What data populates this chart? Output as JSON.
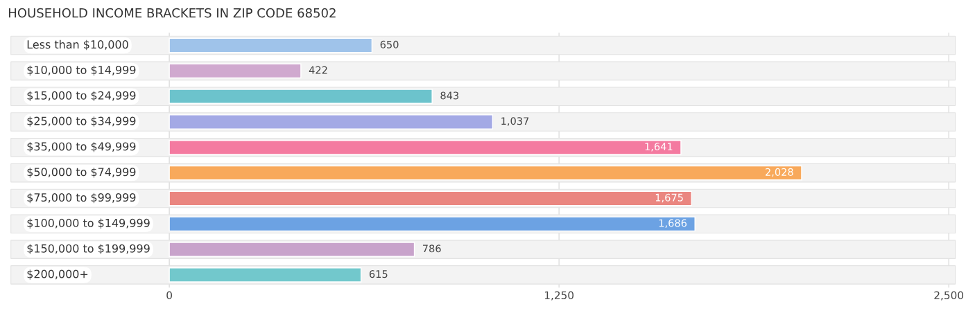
{
  "chart_data": {
    "type": "bar",
    "orientation": "horizontal",
    "title": "HOUSEHOLD INCOME BRACKETS IN ZIP CODE 68502",
    "categories": [
      "Less than $10,000",
      "$10,000 to $14,999",
      "$15,000 to $24,999",
      "$25,000 to $34,999",
      "$35,000 to $49,999",
      "$50,000 to $74,999",
      "$75,000 to $99,999",
      "$100,000 to $149,999",
      "$150,000 to $199,999",
      "$200,000+"
    ],
    "values": [
      650,
      422,
      843,
      1037,
      1641,
      2028,
      1675,
      1686,
      786,
      615
    ],
    "value_labels": [
      "650",
      "422",
      "843",
      "1,037",
      "1,641",
      "2,028",
      "1,675",
      "1,686",
      "786",
      "615"
    ],
    "colors": [
      "#9fc3ea",
      "#d0a9cf",
      "#6cc3cc",
      "#a3a9e5",
      "#f47aa0",
      "#f8a95b",
      "#ea8680",
      "#6ca2e3",
      "#c8a3cb",
      "#72c8cc"
    ],
    "xlim": [
      -518,
      2531
    ],
    "xticks": [
      0,
      {
        "value": 1250,
        "label": "1,250"
      },
      {
        "value": 2500,
        "label": "2,500"
      }
    ],
    "grid": "x"
  }
}
